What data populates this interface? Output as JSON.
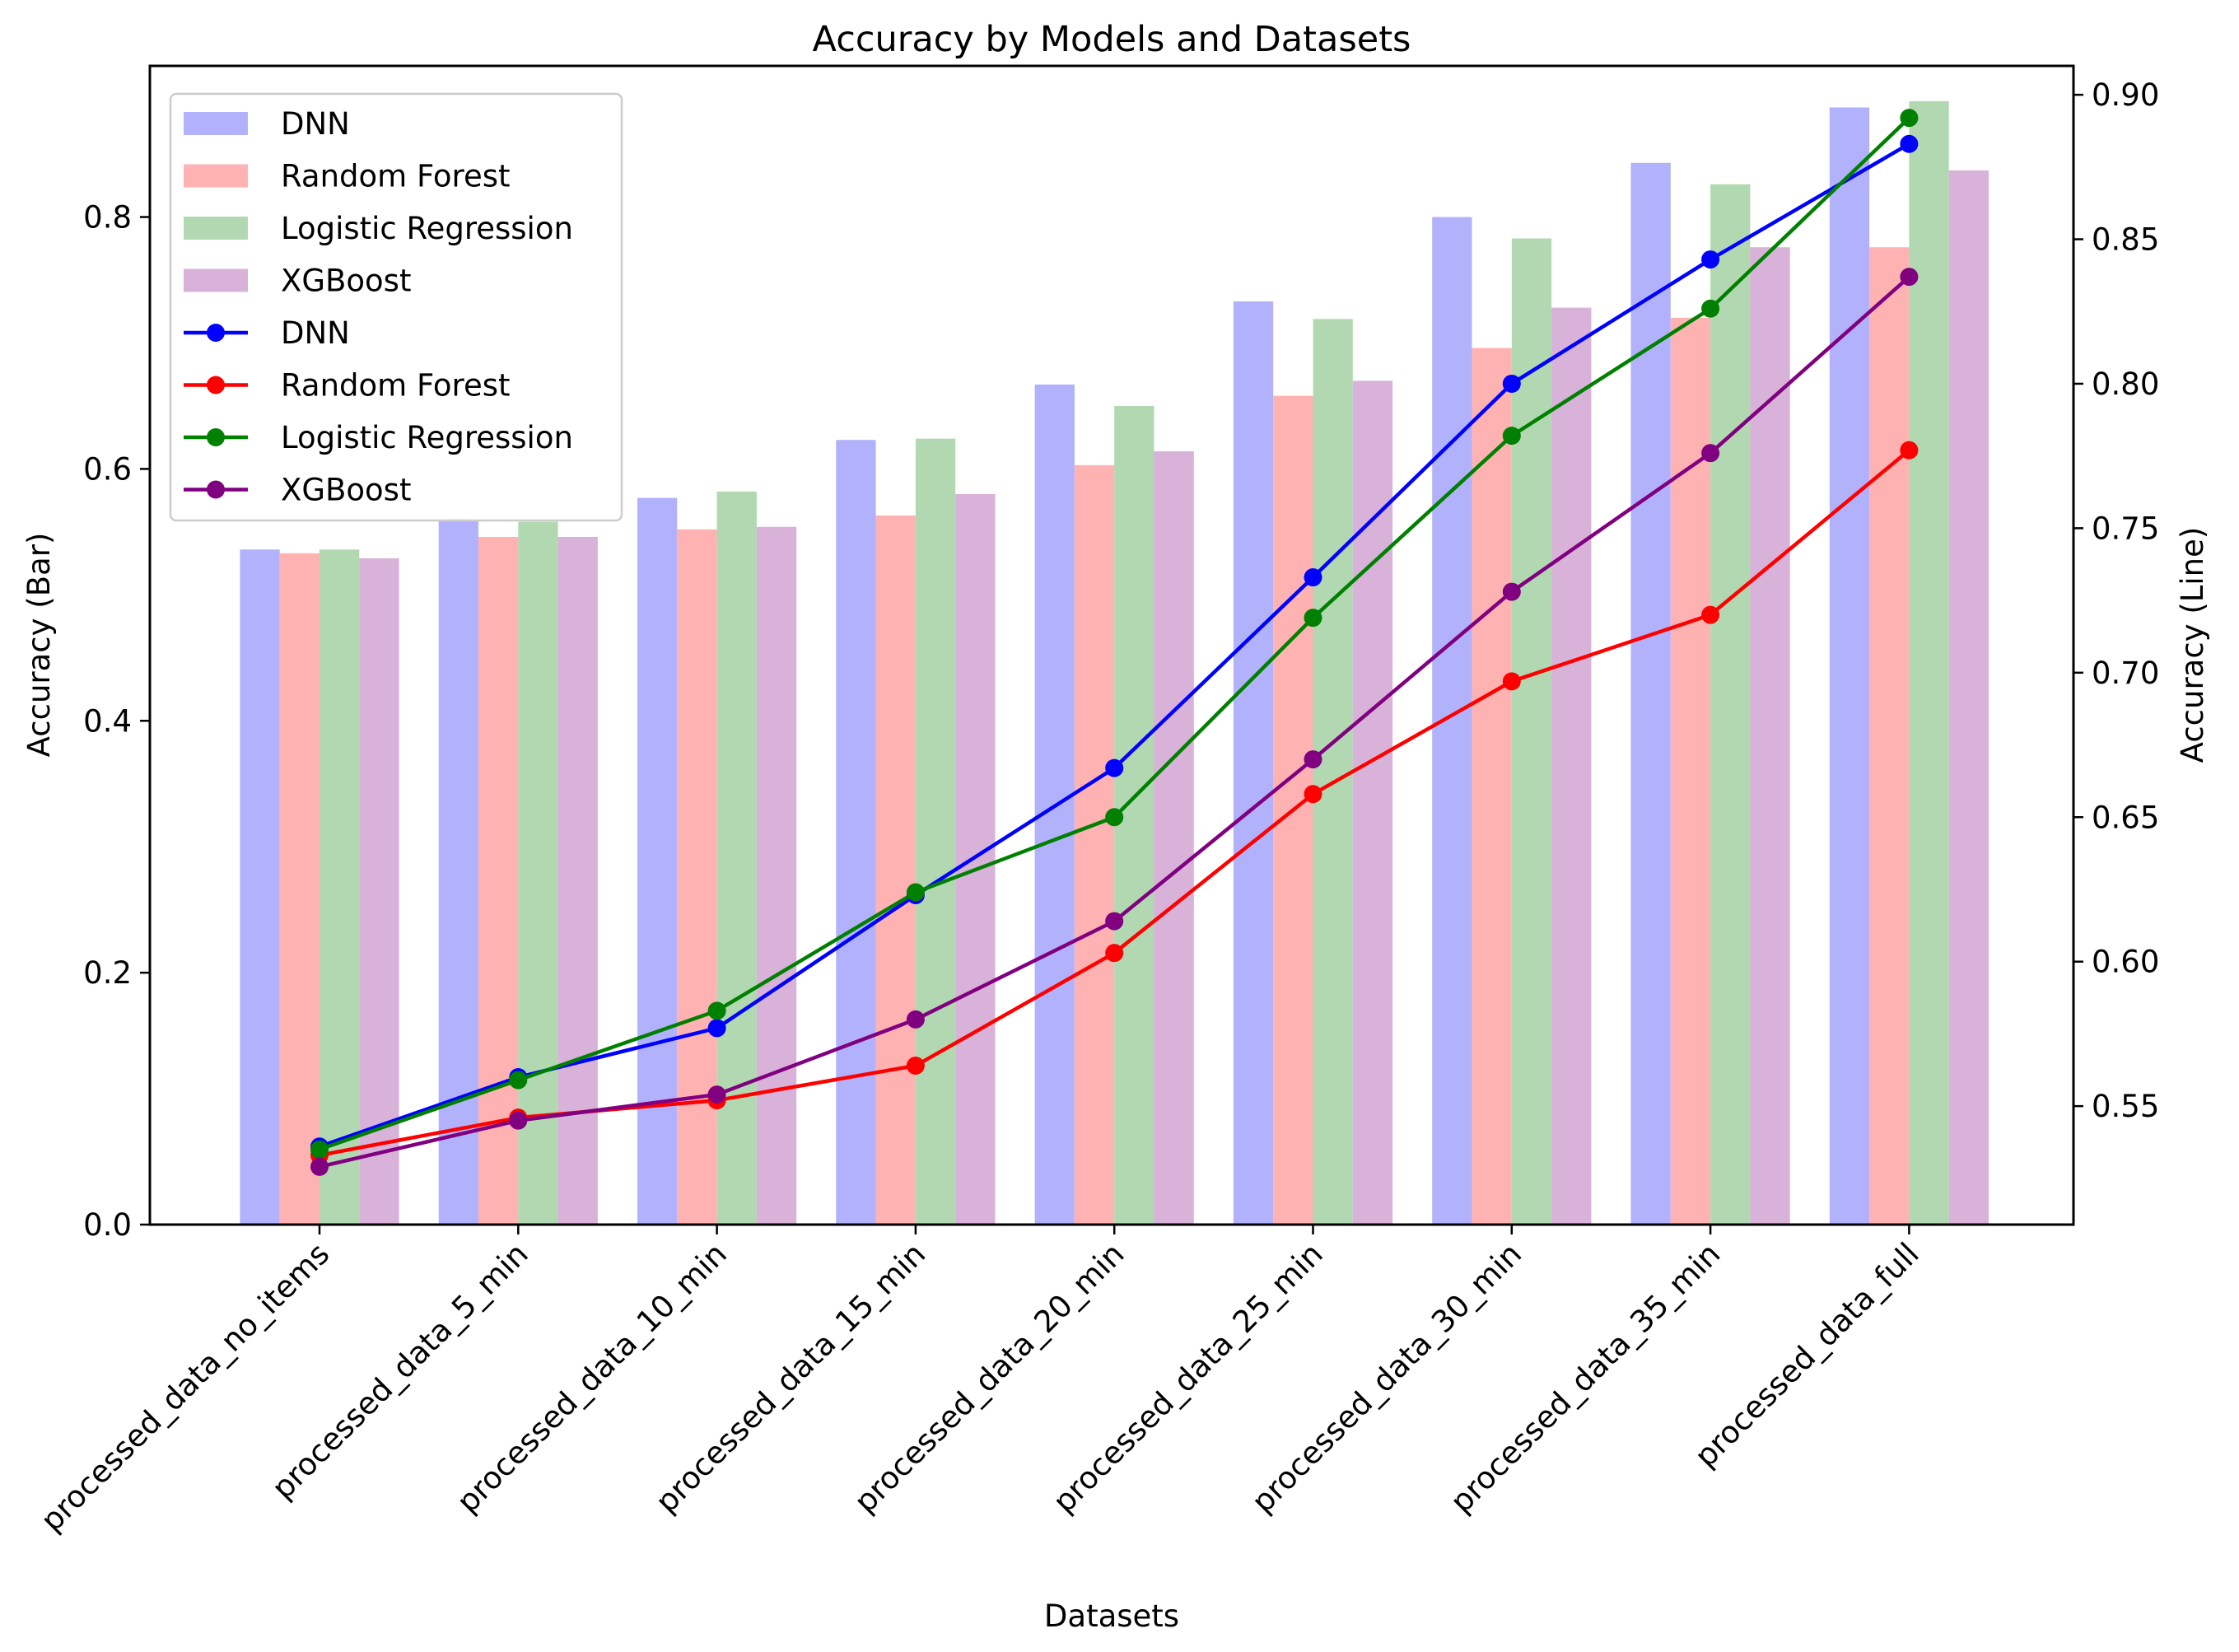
{
  "chart_data": {
    "type": "bar",
    "title": "Accuracy by Models and Datasets",
    "xlabel": "Datasets",
    "ylabel": "Accuracy (Bar)",
    "y2label": "Accuracy (Line)",
    "categories": [
      "processed_data_no_items",
      "processed_data_5_min",
      "processed_data_10_min",
      "processed_data_15_min",
      "processed_data_20_min",
      "processed_data_25_min",
      "processed_data_30_min",
      "processed_data_35_min",
      "processed_data_full"
    ],
    "ylim": [
      0,
      0.92
    ],
    "y2lim": [
      0.509,
      0.91
    ],
    "yticks": [
      "0.0",
      "0.2",
      "0.4",
      "0.6",
      "0.8"
    ],
    "y2ticks": [
      "0.55",
      "0.60",
      "0.65",
      "0.70",
      "0.75",
      "0.80",
      "0.85",
      "0.90"
    ],
    "grid": false,
    "legend_position": "top-left",
    "bar_series": [
      {
        "name": "DNN",
        "color": "#b2b2fc",
        "values": [
          0.536,
          0.56,
          0.577,
          0.623,
          0.667,
          0.733,
          0.8,
          0.843,
          0.887
        ]
      },
      {
        "name": "Random Forest",
        "color": "#ffb2b2",
        "values": [
          0.533,
          0.546,
          0.552,
          0.563,
          0.603,
          0.658,
          0.696,
          0.72,
          0.776
        ]
      },
      {
        "name": "Logistic Regression",
        "color": "#b2d8b2",
        "values": [
          0.536,
          0.558,
          0.582,
          0.624,
          0.65,
          0.719,
          0.783,
          0.826,
          0.892
        ]
      },
      {
        "name": "XGBoost",
        "color": "#d8b2d8",
        "values": [
          0.529,
          0.546,
          0.554,
          0.58,
          0.614,
          0.67,
          0.728,
          0.776,
          0.837
        ]
      }
    ],
    "line_series": [
      {
        "name": "DNN",
        "color": "#0000ff",
        "values": [
          0.536,
          0.56,
          0.577,
          0.623,
          0.667,
          0.733,
          0.8,
          0.843,
          0.883
        ]
      },
      {
        "name": "Random Forest",
        "color": "#ff0000",
        "values": [
          0.533,
          0.546,
          0.552,
          0.564,
          0.603,
          0.658,
          0.697,
          0.72,
          0.777
        ]
      },
      {
        "name": "Logistic Regression",
        "color": "#008000",
        "values": [
          0.535,
          0.559,
          0.583,
          0.624,
          0.65,
          0.719,
          0.782,
          0.826,
          0.892
        ]
      },
      {
        "name": "XGBoost",
        "color": "#800080",
        "values": [
          0.529,
          0.545,
          0.554,
          0.58,
          0.614,
          0.67,
          0.728,
          0.776,
          0.837
        ]
      }
    ]
  }
}
